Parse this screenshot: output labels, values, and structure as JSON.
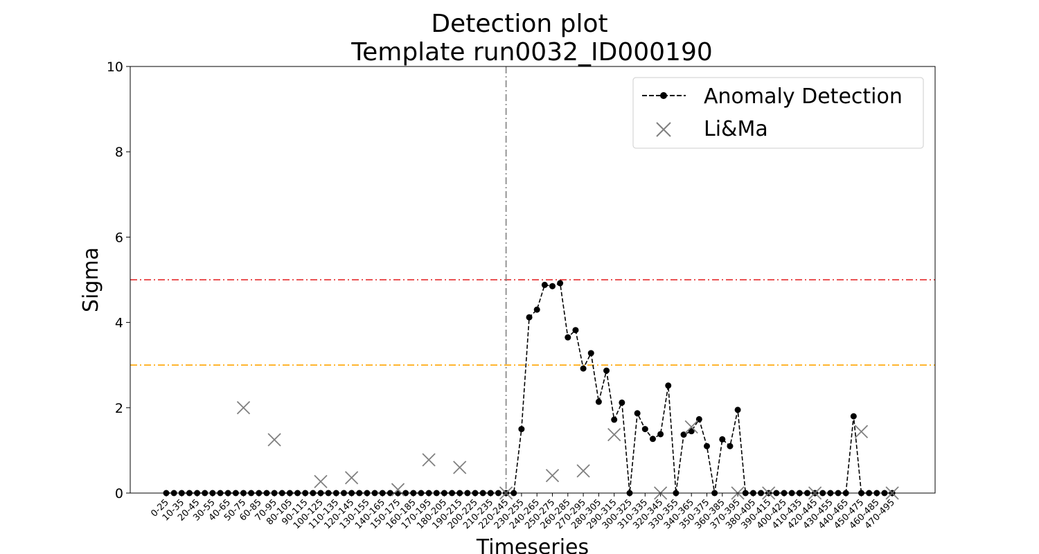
{
  "chart_data": {
    "type": "line",
    "title": "Detection plot",
    "subtitle": "Template run0032_ID000190",
    "xlabel": "Timeseries",
    "ylabel": "Sigma",
    "ylim": [
      0,
      10
    ],
    "yticks": [
      "0",
      "2",
      "4",
      "6",
      "8",
      "10"
    ],
    "grid": false,
    "legend_position": "top-right",
    "categories": [
      "0-25",
      "5-30",
      "10-35",
      "15-40",
      "20-45",
      "25-50",
      "30-55",
      "35-60",
      "40-65",
      "45-70",
      "50-75",
      "55-80",
      "60-85",
      "65-90",
      "70-95",
      "75-100",
      "80-105",
      "85-110",
      "90-115",
      "95-120",
      "100-125",
      "105-130",
      "110-135",
      "115-140",
      "120-145",
      "125-150",
      "130-155",
      "135-160",
      "140-165",
      "145-170",
      "150-175",
      "155-180",
      "160-185",
      "165-190",
      "170-195",
      "175-200",
      "180-205",
      "185-210",
      "190-215",
      "195-220",
      "200-225",
      "205-230",
      "210-235",
      "215-240",
      "220-245",
      "225-250",
      "230-255",
      "235-260",
      "240-265",
      "245-270",
      "250-275",
      "255-280",
      "260-285",
      "265-290",
      "270-295",
      "275-300",
      "280-305",
      "285-310",
      "290-315",
      "295-320",
      "300-325",
      "305-330",
      "310-335",
      "315-340",
      "320-345",
      "325-350",
      "330-355",
      "335-360",
      "340-365",
      "345-370",
      "350-375",
      "355-380",
      "360-385",
      "365-390",
      "370-395",
      "375-400",
      "380-405",
      "385-410",
      "390-415",
      "395-420",
      "400-425",
      "405-430",
      "410-435",
      "415-440",
      "420-445",
      "425-450",
      "430-455",
      "435-460",
      "440-465",
      "445-470",
      "450-475",
      "455-480",
      "460-485",
      "465-490",
      "470-495"
    ],
    "tick_labels": [
      "0-25",
      "10-35",
      "20-45",
      "30-55",
      "40-65",
      "50-75",
      "60-85",
      "70-95",
      "80-105",
      "90-115",
      "100-125",
      "110-135",
      "120-145",
      "130-155",
      "140-165",
      "150-175",
      "160-185",
      "170-195",
      "180-205",
      "190-215",
      "200-225",
      "210-235",
      "220-245",
      "230-255",
      "240-265",
      "250-275",
      "260-285",
      "270-295",
      "280-305",
      "290-315",
      "300-325",
      "310-335",
      "320-345",
      "330-355",
      "340-365",
      "350-375",
      "360-385",
      "370-395",
      "380-405",
      "390-415",
      "400-425",
      "410-435",
      "420-445",
      "430-455",
      "440-465",
      "450-475",
      "460-485",
      "470-495"
    ],
    "series": [
      {
        "name": "Anomaly Detection",
        "color": "#000000",
        "style": "dashed line with circle markers",
        "values": [
          0,
          0,
          0,
          0,
          0,
          0,
          0,
          0,
          0,
          0,
          0,
          0,
          0,
          0,
          0,
          0,
          0,
          0,
          0,
          0,
          0,
          0,
          0,
          0,
          0,
          0,
          0,
          0,
          0,
          0,
          0,
          0,
          0,
          0,
          0,
          0,
          0,
          0,
          0,
          0,
          0,
          0,
          0,
          0,
          0,
          0,
          1.5,
          4.12,
          4.3,
          4.88,
          4.85,
          4.92,
          3.65,
          3.82,
          2.92,
          3.28,
          2.14,
          2.87,
          1.72,
          2.12,
          0,
          1.87,
          1.5,
          1.27,
          1.38,
          2.52,
          0,
          1.37,
          1.45,
          1.73,
          1.1,
          0,
          1.26,
          1.1,
          1.95,
          0,
          0,
          0,
          0,
          0,
          0,
          0,
          0,
          0,
          0,
          0,
          0,
          0,
          0,
          1.8,
          0,
          0,
          0,
          0,
          0
        ]
      },
      {
        "name": "Li&Ma",
        "color": "#808080",
        "style": "x markers",
        "points": [
          {
            "x": "50-75",
            "y": 2.0
          },
          {
            "x": "70-95",
            "y": 1.25
          },
          {
            "x": "100-125",
            "y": 0.27
          },
          {
            "x": "120-145",
            "y": 0.36
          },
          {
            "x": "150-175",
            "y": 0.08
          },
          {
            "x": "170-195",
            "y": 0.78
          },
          {
            "x": "190-215",
            "y": 0.6
          },
          {
            "x": "220-245",
            "y": 0.0
          },
          {
            "x": "250-275",
            "y": 0.41
          },
          {
            "x": "270-295",
            "y": 0.52
          },
          {
            "x": "290-315",
            "y": 1.37
          },
          {
            "x": "320-345",
            "y": 0.0
          },
          {
            "x": "340-365",
            "y": 1.55
          },
          {
            "x": "370-395",
            "y": 0.0
          },
          {
            "x": "390-415",
            "y": 0.0
          },
          {
            "x": "420-445",
            "y": 0.0
          },
          {
            "x": "450-475",
            "y": 1.44
          },
          {
            "x": "470-495",
            "y": 0.0
          }
        ]
      }
    ],
    "reference_lines": [
      {
        "orientation": "horizontal",
        "y": 5,
        "color": "#e41a1c",
        "style": "dash-dot"
      },
      {
        "orientation": "horizontal",
        "y": 3,
        "color": "#ffa500",
        "style": "dash-dot"
      },
      {
        "orientation": "vertical",
        "x": "220-245",
        "color": "#808080",
        "style": "dash-dot"
      }
    ]
  }
}
